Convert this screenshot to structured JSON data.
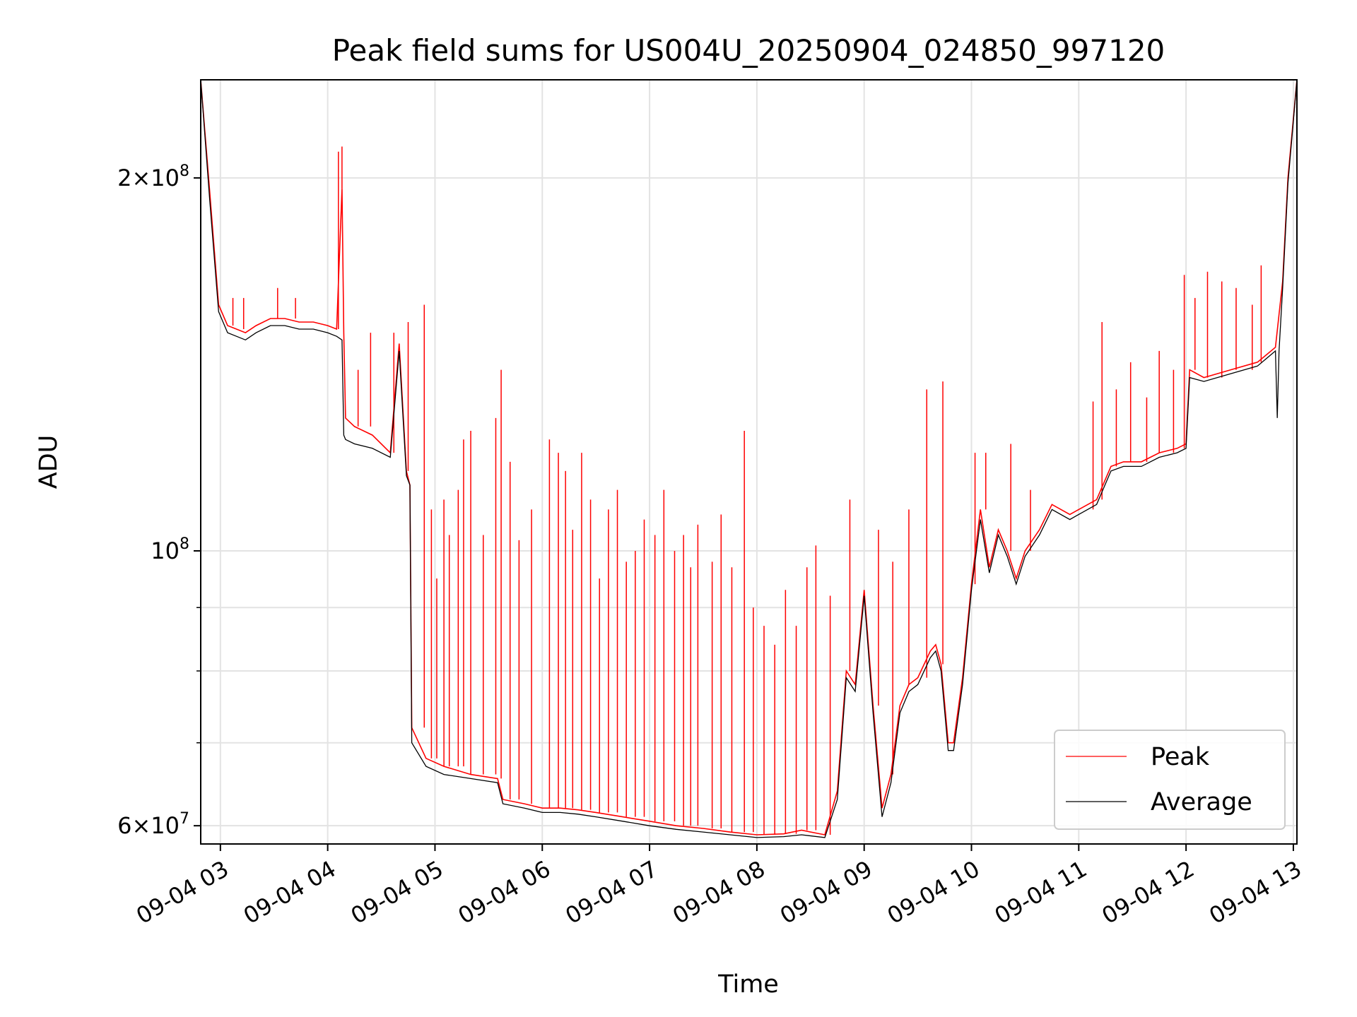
{
  "chart_data": {
    "type": "line",
    "title": "Peak field sums for US004U_20250904_024850_997120",
    "xlabel": "Time",
    "ylabel": "ADU",
    "yscale": "log",
    "ylim": [
      58000000,
      240000000
    ],
    "xlim": [
      "09-04 02:49",
      "09-04 13:02"
    ],
    "grid": true,
    "legend_position": "lower right",
    "x_ticks": [
      "09-04 03",
      "09-04 04",
      "09-04 05",
      "09-04 06",
      "09-04 07",
      "09-04 08",
      "09-04 09",
      "09-04 10",
      "09-04 11",
      "09-04 12",
      "09-04 13"
    ],
    "y_ticks": [
      {
        "value": 200000000,
        "mantissa": "2",
        "exponent": "8"
      },
      {
        "value": 100000000,
        "mantissa": "",
        "exponent": "8"
      },
      {
        "value": 60000000,
        "mantissa": "6",
        "exponent": "7"
      }
    ],
    "series": [
      {
        "name": "Peak",
        "color": "#ff0000",
        "points": [
          [
            "09-04 02:49",
            240000000
          ],
          [
            "09-04 02:54",
            195000000
          ],
          [
            "09-04 02:59",
            158000000
          ],
          [
            "09-04 03:04",
            152000000
          ],
          [
            "09-04 03:09",
            151000000
          ],
          [
            "09-04 03:14",
            150000000
          ],
          [
            "09-04 03:20",
            152000000
          ],
          [
            "09-04 03:28",
            154000000
          ],
          [
            "09-04 03:36",
            154000000
          ],
          [
            "09-04 03:44",
            153000000
          ],
          [
            "09-04 03:52",
            153000000
          ],
          [
            "09-04 04:00",
            152000000
          ],
          [
            "09-04 04:05",
            151000000
          ],
          [
            "09-04 04:08",
            196000000
          ],
          [
            "09-04 04:09",
            150000000
          ],
          [
            "09-04 04:10",
            128000000
          ],
          [
            "09-04 04:15",
            126000000
          ],
          [
            "09-04 04:25",
            124000000
          ],
          [
            "09-04 04:35",
            120000000
          ],
          [
            "09-04 04:40",
            147000000
          ],
          [
            "09-04 04:44",
            116000000
          ],
          [
            "09-04 04:46",
            113000000
          ],
          [
            "09-04 04:47",
            72000000
          ],
          [
            "09-04 04:55",
            68000000
          ],
          [
            "09-04 05:05",
            67000000
          ],
          [
            "09-04 05:20",
            66000000
          ],
          [
            "09-04 05:35",
            65500000
          ],
          [
            "09-04 05:38",
            63000000
          ],
          [
            "09-04 05:50",
            62500000
          ],
          [
            "09-04 06:00",
            62000000
          ],
          [
            "09-04 06:10",
            62000000
          ],
          [
            "09-04 06:20",
            61800000
          ],
          [
            "09-04 06:30",
            61500000
          ],
          [
            "09-04 06:45",
            61000000
          ],
          [
            "09-04 07:00",
            60500000
          ],
          [
            "09-04 07:15",
            60000000
          ],
          [
            "09-04 07:30",
            59700000
          ],
          [
            "09-04 07:45",
            59300000
          ],
          [
            "09-04 08:00",
            59000000
          ],
          [
            "09-04 08:15",
            59100000
          ],
          [
            "09-04 08:25",
            59500000
          ],
          [
            "09-04 08:38",
            59000000
          ],
          [
            "09-04 08:45",
            64000000
          ],
          [
            "09-04 08:50",
            80000000
          ],
          [
            "09-04 08:55",
            78000000
          ],
          [
            "09-04 09:00",
            93000000
          ],
          [
            "09-04 09:05",
            75000000
          ],
          [
            "09-04 09:10",
            62000000
          ],
          [
            "09-04 09:15",
            66000000
          ],
          [
            "09-04 09:20",
            75000000
          ],
          [
            "09-04 09:25",
            78000000
          ],
          [
            "09-04 09:30",
            79000000
          ],
          [
            "09-04 09:37",
            83000000
          ],
          [
            "09-04 09:40",
            84000000
          ],
          [
            "09-04 09:43",
            81000000
          ],
          [
            "09-04 09:47",
            70000000
          ],
          [
            "09-04 09:50",
            70000000
          ],
          [
            "09-04 09:55",
            79000000
          ],
          [
            "09-04 10:00",
            94000000
          ],
          [
            "09-04 10:05",
            108000000
          ],
          [
            "09-04 10:10",
            97000000
          ],
          [
            "09-04 10:15",
            104000000
          ],
          [
            "09-04 10:20",
            100000000
          ],
          [
            "09-04 10:25",
            95000000
          ],
          [
            "09-04 10:30",
            100000000
          ],
          [
            "09-04 10:38",
            104000000
          ],
          [
            "09-04 10:45",
            109000000
          ],
          [
            "09-04 10:55",
            107000000
          ],
          [
            "09-04 11:00",
            108000000
          ],
          [
            "09-04 11:10",
            110000000
          ],
          [
            "09-04 11:18",
            117000000
          ],
          [
            "09-04 11:25",
            118000000
          ],
          [
            "09-04 11:35",
            118000000
          ],
          [
            "09-04 11:45",
            120000000
          ],
          [
            "09-04 11:55",
            121000000
          ],
          [
            "09-04 12:00",
            122000000
          ],
          [
            "09-04 12:02",
            140000000
          ],
          [
            "09-04 12:10",
            138000000
          ],
          [
            "09-04 12:25",
            140000000
          ],
          [
            "09-04 12:40",
            142000000
          ],
          [
            "09-04 12:50",
            146000000
          ],
          [
            "09-04 12:54",
            165000000
          ],
          [
            "09-04 12:57",
            200000000
          ],
          [
            "09-04 13:02",
            240000000
          ]
        ],
        "spikes": [
          [
            "09-04 03:07",
            160000000
          ],
          [
            "09-04 03:13",
            160000000
          ],
          [
            "09-04 03:32",
            163000000
          ],
          [
            "09-04 03:42",
            160000000
          ],
          [
            "09-04 04:06",
            210000000
          ],
          [
            "09-04 04:08",
            212000000
          ],
          [
            "09-04 04:17",
            140000000
          ],
          [
            "09-04 04:24",
            150000000
          ],
          [
            "09-04 04:37",
            150000000
          ],
          [
            "09-04 04:45",
            153000000
          ],
          [
            "09-04 04:54",
            158000000
          ],
          [
            "09-04 04:58",
            108000000
          ],
          [
            "09-04 05:01",
            95000000
          ],
          [
            "09-04 05:05",
            110000000
          ],
          [
            "09-04 05:08",
            103000000
          ],
          [
            "09-04 05:13",
            112000000
          ],
          [
            "09-04 05:16",
            123000000
          ],
          [
            "09-04 05:20",
            125000000
          ],
          [
            "09-04 05:27",
            103000000
          ],
          [
            "09-04 05:34",
            128000000
          ],
          [
            "09-04 05:37",
            140000000
          ],
          [
            "09-04 05:42",
            118000000
          ],
          [
            "09-04 05:47",
            102000000
          ],
          [
            "09-04 05:54",
            108000000
          ],
          [
            "09-04 06:04",
            123000000
          ],
          [
            "09-04 06:09",
            120000000
          ],
          [
            "09-04 06:13",
            116000000
          ],
          [
            "09-04 06:17",
            104000000
          ],
          [
            "09-04 06:22",
            120000000
          ],
          [
            "09-04 06:27",
            110000000
          ],
          [
            "09-04 06:32",
            95000000
          ],
          [
            "09-04 06:37",
            108000000
          ],
          [
            "09-04 06:42",
            112000000
          ],
          [
            "09-04 06:47",
            98000000
          ],
          [
            "09-04 06:52",
            100000000
          ],
          [
            "09-04 06:57",
            106000000
          ],
          [
            "09-04 07:03",
            103000000
          ],
          [
            "09-04 07:08",
            112000000
          ],
          [
            "09-04 07:14",
            100000000
          ],
          [
            "09-04 07:19",
            103000000
          ],
          [
            "09-04 07:23",
            97000000
          ],
          [
            "09-04 07:27",
            105000000
          ],
          [
            "09-04 07:35",
            98000000
          ],
          [
            "09-04 07:40",
            107000000
          ],
          [
            "09-04 07:46",
            97000000
          ],
          [
            "09-04 07:53",
            125000000
          ],
          [
            "09-04 07:58",
            90000000
          ],
          [
            "09-04 08:04",
            87000000
          ],
          [
            "09-04 08:10",
            84000000
          ],
          [
            "09-04 08:16",
            93000000
          ],
          [
            "09-04 08:22",
            87000000
          ],
          [
            "09-04 08:28",
            97000000
          ],
          [
            "09-04 08:33",
            101000000
          ],
          [
            "09-04 08:41",
            92000000
          ],
          [
            "09-04 08:52",
            110000000
          ],
          [
            "09-04 09:08",
            104000000
          ],
          [
            "09-04 09:16",
            98000000
          ],
          [
            "09-04 09:25",
            108000000
          ],
          [
            "09-04 09:35",
            135000000
          ],
          [
            "09-04 09:44",
            137000000
          ],
          [
            "09-04 10:02",
            120000000
          ],
          [
            "09-04 10:08",
            120000000
          ],
          [
            "09-04 10:22",
            122000000
          ],
          [
            "09-04 10:33",
            112000000
          ],
          [
            "09-04 11:08",
            132000000
          ],
          [
            "09-04 11:13",
            153000000
          ],
          [
            "09-04 11:21",
            135000000
          ],
          [
            "09-04 11:29",
            142000000
          ],
          [
            "09-04 11:38",
            133000000
          ],
          [
            "09-04 11:45",
            145000000
          ],
          [
            "09-04 11:53",
            140000000
          ],
          [
            "09-04 11:59",
            167000000
          ],
          [
            "09-04 12:05",
            160000000
          ],
          [
            "09-04 12:12",
            168000000
          ],
          [
            "09-04 12:20",
            165000000
          ],
          [
            "09-04 12:28",
            163000000
          ],
          [
            "09-04 12:37",
            158000000
          ],
          [
            "09-04 12:42",
            170000000
          ]
        ]
      },
      {
        "name": "Average",
        "color": "#000000",
        "points": [
          [
            "09-04 02:49",
            240000000
          ],
          [
            "09-04 02:54",
            192000000
          ],
          [
            "09-04 02:59",
            156000000
          ],
          [
            "09-04 03:04",
            150000000
          ],
          [
            "09-04 03:09",
            149000000
          ],
          [
            "09-04 03:14",
            148000000
          ],
          [
            "09-04 03:20",
            150000000
          ],
          [
            "09-04 03:28",
            152000000
          ],
          [
            "09-04 03:36",
            152000000
          ],
          [
            "09-04 03:44",
            151000000
          ],
          [
            "09-04 03:52",
            151000000
          ],
          [
            "09-04 04:00",
            150000000
          ],
          [
            "09-04 04:05",
            149000000
          ],
          [
            "09-04 04:08",
            148000000
          ],
          [
            "09-04 04:09",
            124000000
          ],
          [
            "09-04 04:10",
            123000000
          ],
          [
            "09-04 04:15",
            122000000
          ],
          [
            "09-04 04:25",
            121000000
          ],
          [
            "09-04 04:35",
            119000000
          ],
          [
            "09-04 04:40",
            145000000
          ],
          [
            "09-04 04:44",
            115000000
          ],
          [
            "09-04 04:46",
            113000000
          ],
          [
            "09-04 04:47",
            70000000
          ],
          [
            "09-04 04:55",
            67000000
          ],
          [
            "09-04 05:05",
            66000000
          ],
          [
            "09-04 05:20",
            65500000
          ],
          [
            "09-04 05:35",
            65000000
          ],
          [
            "09-04 05:38",
            62500000
          ],
          [
            "09-04 05:50",
            62000000
          ],
          [
            "09-04 06:00",
            61500000
          ],
          [
            "09-04 06:10",
            61500000
          ],
          [
            "09-04 06:20",
            61300000
          ],
          [
            "09-04 06:30",
            61000000
          ],
          [
            "09-04 06:45",
            60500000
          ],
          [
            "09-04 07:00",
            60000000
          ],
          [
            "09-04 07:15",
            59600000
          ],
          [
            "09-04 07:30",
            59300000
          ],
          [
            "09-04 07:45",
            59000000
          ],
          [
            "09-04 08:00",
            58700000
          ],
          [
            "09-04 08:15",
            58800000
          ],
          [
            "09-04 08:25",
            59000000
          ],
          [
            "09-04 08:38",
            58700000
          ],
          [
            "09-04 08:45",
            63000000
          ],
          [
            "09-04 08:50",
            79000000
          ],
          [
            "09-04 08:55",
            77000000
          ],
          [
            "09-04 09:00",
            92000000
          ],
          [
            "09-04 09:05",
            74000000
          ],
          [
            "09-04 09:10",
            61000000
          ],
          [
            "09-04 09:15",
            65000000
          ],
          [
            "09-04 09:20",
            74000000
          ],
          [
            "09-04 09:25",
            77000000
          ],
          [
            "09-04 09:30",
            78000000
          ],
          [
            "09-04 09:37",
            82000000
          ],
          [
            "09-04 09:40",
            83000000
          ],
          [
            "09-04 09:43",
            80000000
          ],
          [
            "09-04 09:47",
            69000000
          ],
          [
            "09-04 09:50",
            69000000
          ],
          [
            "09-04 09:55",
            78000000
          ],
          [
            "09-04 10:00",
            93000000
          ],
          [
            "09-04 10:05",
            106000000
          ],
          [
            "09-04 10:10",
            96000000
          ],
          [
            "09-04 10:15",
            103000000
          ],
          [
            "09-04 10:20",
            99000000
          ],
          [
            "09-04 10:25",
            94000000
          ],
          [
            "09-04 10:30",
            99000000
          ],
          [
            "09-04 10:38",
            103000000
          ],
          [
            "09-04 10:45",
            108000000
          ],
          [
            "09-04 10:55",
            106000000
          ],
          [
            "09-04 11:00",
            107000000
          ],
          [
            "09-04 11:10",
            109000000
          ],
          [
            "09-04 11:18",
            116000000
          ],
          [
            "09-04 11:25",
            117000000
          ],
          [
            "09-04 11:35",
            117000000
          ],
          [
            "09-04 11:45",
            119000000
          ],
          [
            "09-04 11:55",
            120000000
          ],
          [
            "09-04 12:00",
            121000000
          ],
          [
            "09-04 12:02",
            138000000
          ],
          [
            "09-04 12:10",
            137000000
          ],
          [
            "09-04 12:25",
            139000000
          ],
          [
            "09-04 12:40",
            141000000
          ],
          [
            "09-04 12:50",
            145000000
          ],
          [
            "09-04 12:51",
            128000000
          ],
          [
            "09-04 12:52",
            145000000
          ],
          [
            "09-04 12:54",
            163000000
          ],
          [
            "09-04 12:57",
            198000000
          ],
          [
            "09-04 13:02",
            240000000
          ]
        ]
      }
    ]
  }
}
